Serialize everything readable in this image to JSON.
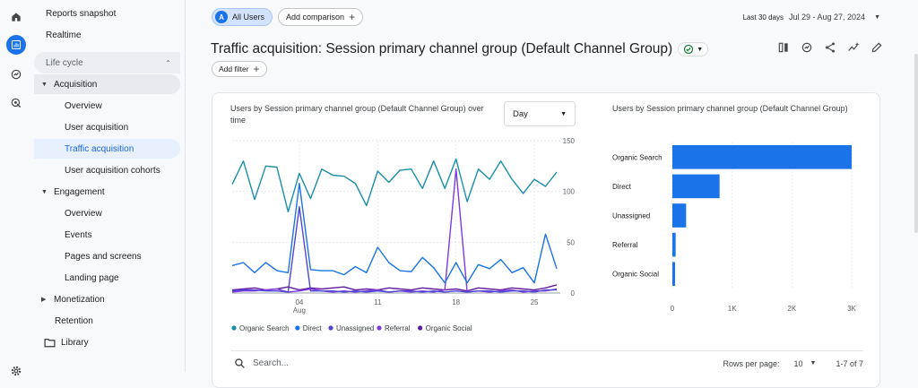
{
  "rail": {
    "icons": [
      "home-icon",
      "reports-icon",
      "explore-icon",
      "advertising-icon",
      "settings-icon"
    ]
  },
  "nav": {
    "reports_snapshot": "Reports snapshot",
    "realtime": "Realtime",
    "lifecycle": "Life cycle",
    "acquisition": "Acquisition",
    "acq_items": [
      "Overview",
      "User acquisition",
      "Traffic acquisition",
      "User acquisition cohorts"
    ],
    "engagement": "Engagement",
    "eng_items": [
      "Overview",
      "Events",
      "Pages and screens",
      "Landing page"
    ],
    "monetization": "Monetization",
    "retention": "Retention",
    "library": "Library"
  },
  "topbar": {
    "avatar_letter": "A",
    "all_users": "All Users",
    "add_comparison": "Add comparison",
    "date_label": "Last 30 days",
    "date_range": "Jul 29 - Aug 27, 2024"
  },
  "page": {
    "title": "Traffic acquisition: Session primary channel group (Default Channel Group)",
    "add_filter": "Add filter"
  },
  "card": {
    "line_title": "Users by Session primary channel group (Default Channel Group) over time",
    "dropdown": "Day",
    "bar_title": "Users by Session primary channel group (Default Channel Group)",
    "search_placeholder": "Search...",
    "rows_label": "Rows per page:",
    "rows_value": "10",
    "range": "1-7 of 7"
  },
  "chart_data": [
    {
      "type": "line",
      "title": "Users by Session primary channel group (Default Channel Group) over time",
      "x_tick_labels": [
        "04\nAug",
        "11",
        "18",
        "25"
      ],
      "y_tick_labels": [
        "150",
        "100",
        "50",
        "0"
      ],
      "ylim": [
        0,
        150
      ],
      "legend_position": "bottom",
      "x": [
        "Jul 29",
        "Jul 30",
        "Jul 31",
        "Aug 1",
        "Aug 2",
        "Aug 3",
        "Aug 4",
        "Aug 5",
        "Aug 6",
        "Aug 7",
        "Aug 8",
        "Aug 9",
        "Aug 10",
        "Aug 11",
        "Aug 12",
        "Aug 13",
        "Aug 14",
        "Aug 15",
        "Aug 16",
        "Aug 17",
        "Aug 18",
        "Aug 19",
        "Aug 20",
        "Aug 21",
        "Aug 22",
        "Aug 23",
        "Aug 24",
        "Aug 25",
        "Aug 26",
        "Aug 27"
      ],
      "series": [
        {
          "name": "Organic Search",
          "color": "#1a8ea8",
          "values": [
            107,
            130,
            92,
            125,
            124,
            80,
            118,
            93,
            122,
            116,
            115,
            108,
            86,
            120,
            109,
            121,
            122,
            103,
            130,
            103,
            132,
            90,
            122,
            112,
            130,
            112,
            98,
            112,
            105,
            119
          ]
        },
        {
          "name": "Direct",
          "color": "#1a73e8",
          "values": [
            27,
            30,
            20,
            30,
            22,
            20,
            108,
            23,
            22,
            22,
            18,
            26,
            20,
            45,
            30,
            22,
            21,
            35,
            25,
            10,
            30,
            10,
            28,
            24,
            33,
            20,
            25,
            10,
            58,
            24
          ]
        },
        {
          "name": "Unassigned",
          "color": "#4f46d8",
          "values": [
            2,
            3,
            3,
            2,
            2,
            1,
            85,
            2,
            2,
            2,
            1,
            2,
            1,
            2,
            1,
            2,
            2,
            1,
            2,
            1,
            2,
            1,
            2,
            2,
            1,
            2,
            2,
            1,
            3,
            3
          ]
        },
        {
          "name": "Referral",
          "color": "#7c3ae0",
          "values": [
            1,
            2,
            2,
            3,
            4,
            1,
            2,
            4,
            2,
            1,
            2,
            1,
            2,
            3,
            1,
            2,
            1,
            2,
            1,
            3,
            122,
            1,
            2,
            1,
            2,
            3,
            1,
            2,
            2,
            4
          ]
        },
        {
          "name": "Organic Social",
          "color": "#5e1aa0",
          "values": [
            3,
            4,
            5,
            3,
            4,
            6,
            3,
            5,
            4,
            5,
            6,
            3,
            4,
            3,
            5,
            4,
            3,
            5,
            4,
            3,
            4,
            2,
            5,
            4,
            3,
            5,
            4,
            3,
            5,
            8
          ]
        }
      ]
    },
    {
      "type": "bar",
      "orientation": "horizontal",
      "title": "Users by Session primary channel group (Default Channel Group)",
      "categories": [
        "Organic Search",
        "Direct",
        "Unassigned",
        "Referral",
        "Organic Social"
      ],
      "values": [
        3000,
        790,
        230,
        55,
        45
      ],
      "xlim": [
        0,
        3000
      ],
      "x_tick_labels": [
        "0",
        "1K",
        "2K",
        "3K"
      ],
      "color": "#1a73e8"
    }
  ]
}
